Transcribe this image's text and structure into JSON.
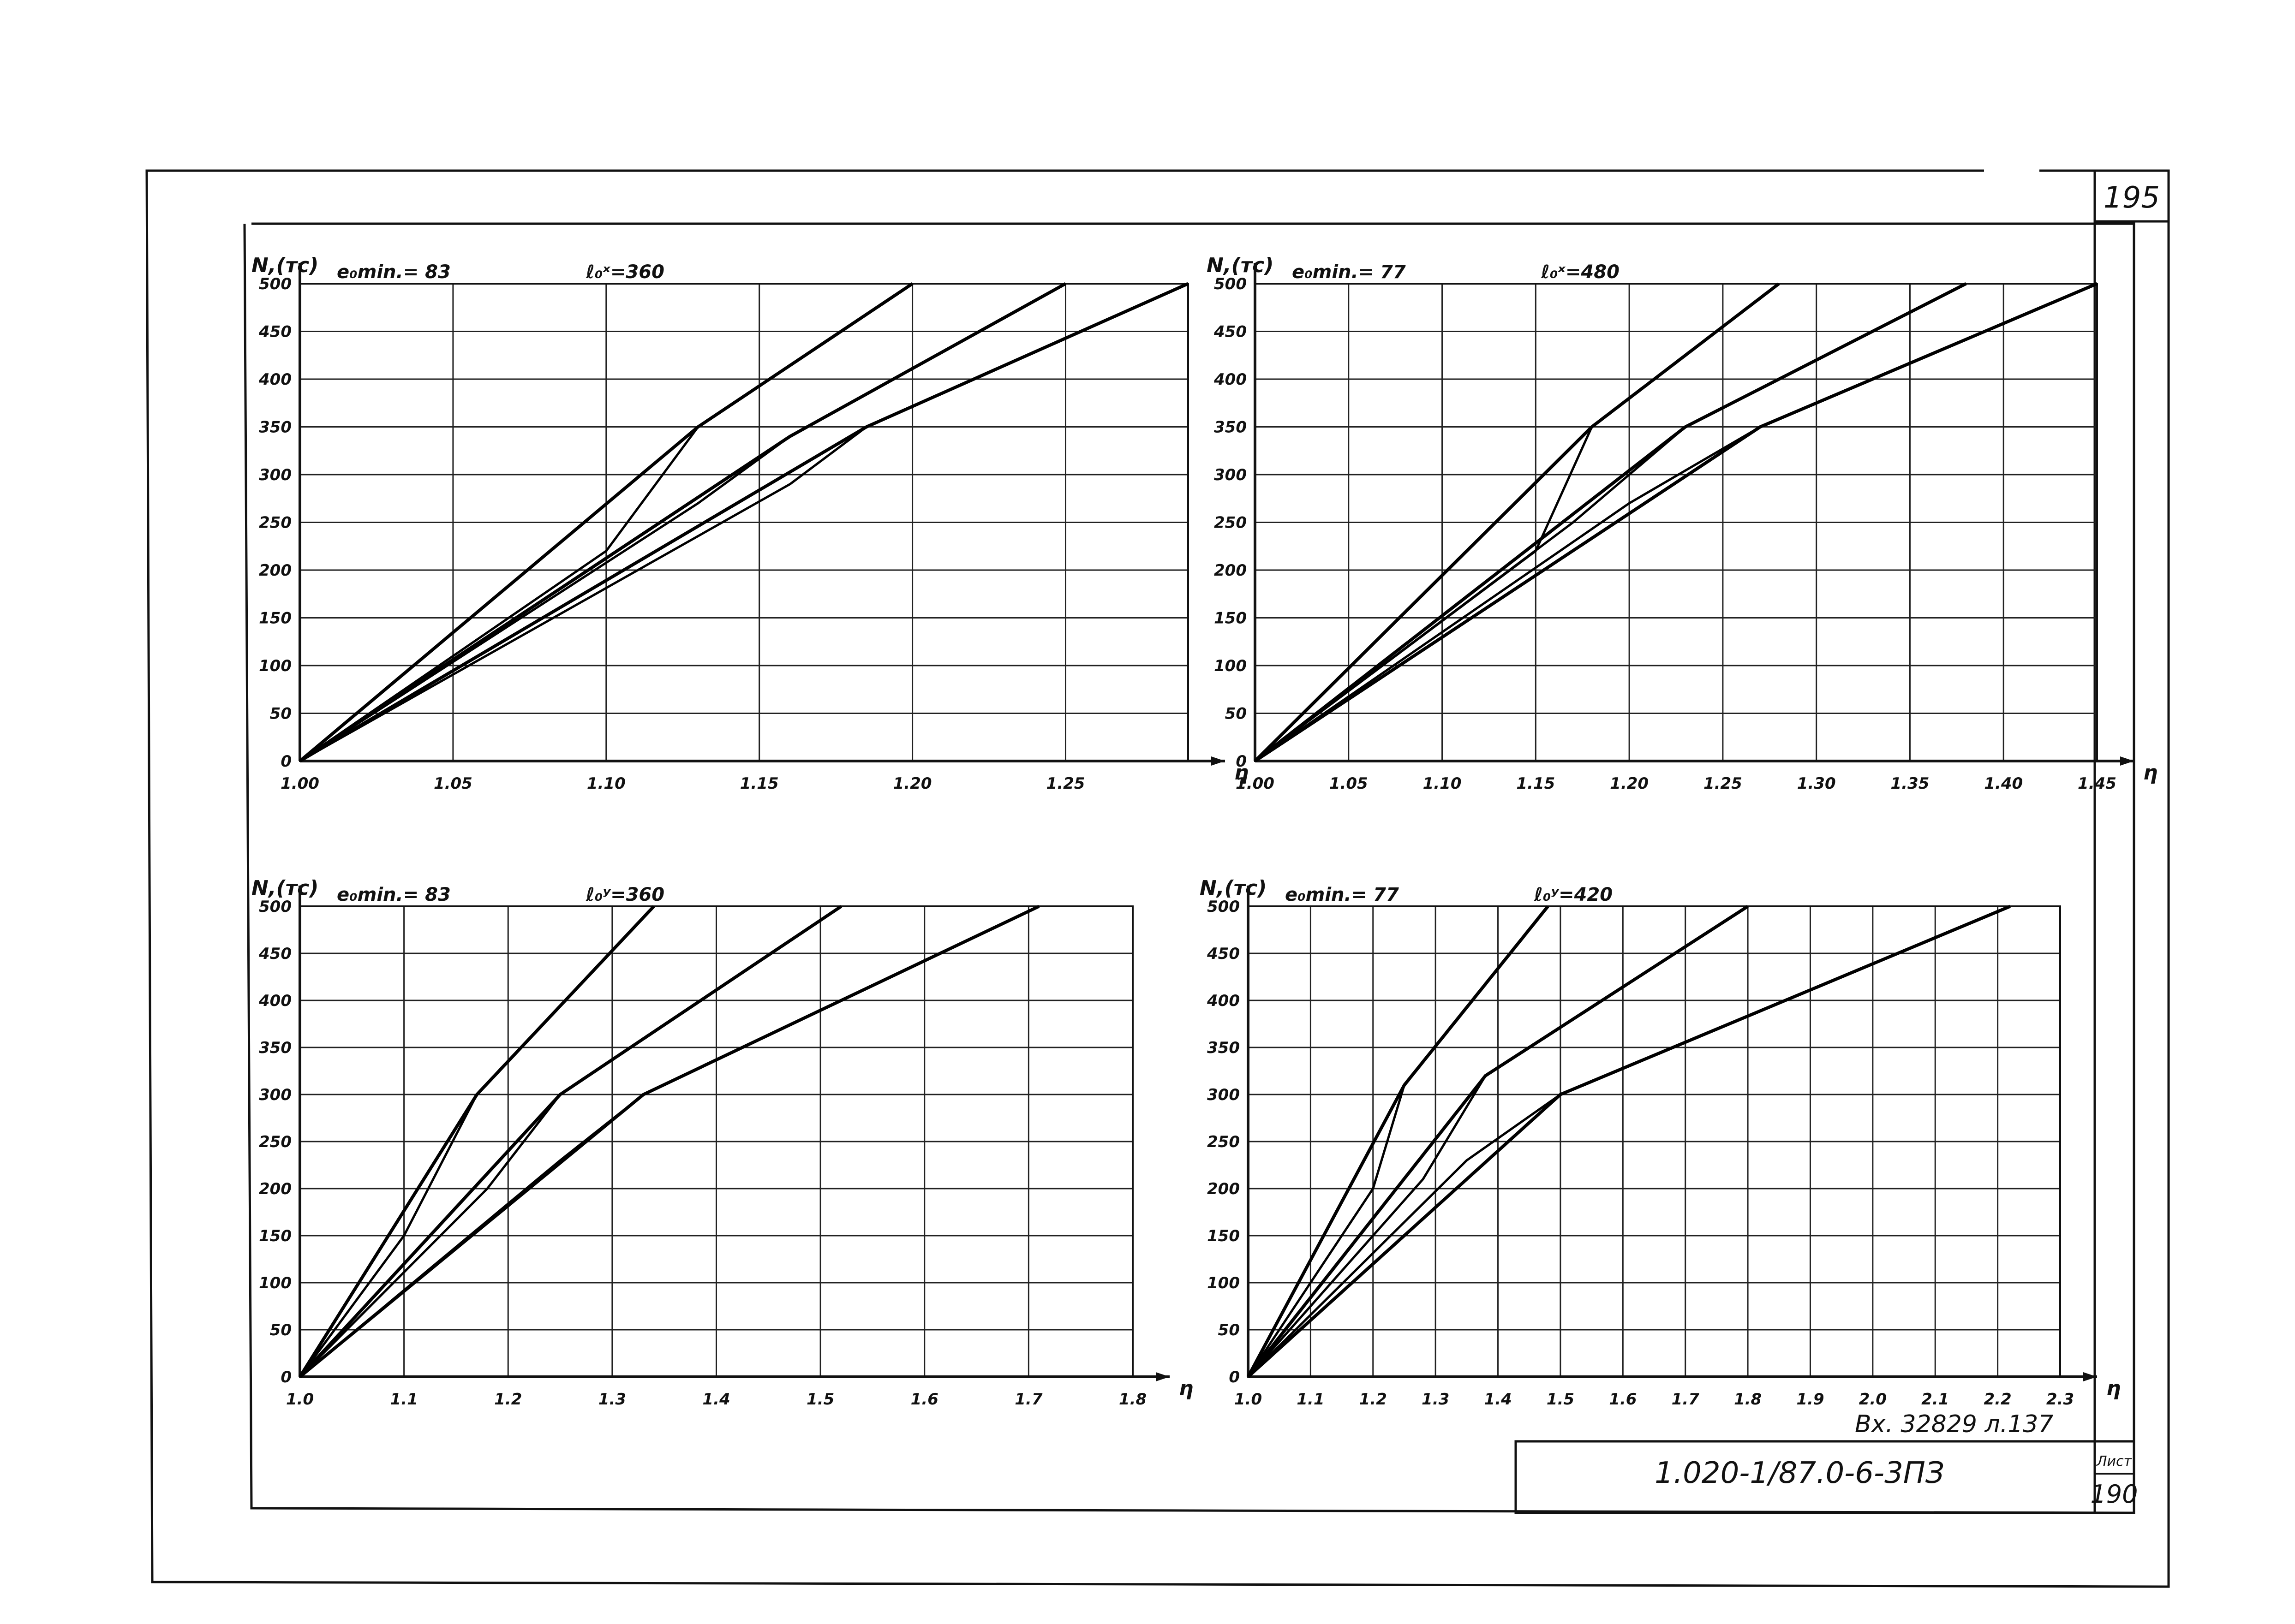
{
  "sheet": {
    "corner_number": "195",
    "doc_code": "1.020-1/87.0-6-3ПЗ",
    "inv_note": "Вх. 32829 л.137",
    "sheet_label": "Лист",
    "sheet_number": "190"
  },
  "chart_data": [
    {
      "type": "line",
      "eomin_label": "e₀min.= 83",
      "l0_label": "ℓ₀ˣ=360",
      "ylabel": "N,(тс)",
      "xlabel": "η",
      "xlim": [
        1.0,
        1.29
      ],
      "ylim": [
        0,
        500
      ],
      "xticks": [
        1.0,
        1.05,
        1.1,
        1.15,
        1.2,
        1.25
      ],
      "xtick_labels": [
        "1.00",
        "1.05",
        "1.10",
        "1.15",
        "1.20",
        "1.25"
      ],
      "yticks": [
        0,
        50,
        100,
        150,
        200,
        250,
        300,
        350,
        400,
        450,
        500
      ],
      "ytick_labels": [
        "0",
        "50",
        "100",
        "150",
        "200",
        "250",
        "300",
        "350",
        "400",
        "450",
        "500"
      ],
      "grid": true,
      "series": [
        {
          "points": [
            [
              1.0,
              0
            ],
            [
              1.13,
              350
            ],
            [
              1.2,
              500
            ]
          ]
        },
        {
          "points": [
            [
              1.0,
              0
            ],
            [
              1.16,
              340
            ],
            [
              1.25,
              500
            ]
          ]
        },
        {
          "points": [
            [
              1.0,
              0
            ],
            [
              1.185,
              350
            ],
            [
              1.29,
              500
            ]
          ]
        },
        {
          "points": [
            [
              1.0,
              0
            ],
            [
              1.1,
              220
            ],
            [
              1.13,
              350
            ]
          ]
        },
        {
          "points": [
            [
              1.0,
              0
            ],
            [
              1.13,
              270
            ],
            [
              1.16,
              340
            ]
          ]
        },
        {
          "points": [
            [
              1.0,
              0
            ],
            [
              1.16,
              290
            ],
            [
              1.185,
              350
            ]
          ]
        }
      ]
    },
    {
      "type": "line",
      "eomin_label": "e₀min.= 77",
      "l0_label": "ℓ₀ˣ=480",
      "ylabel": "N,(тс)",
      "xlabel": "η",
      "xlim": [
        1.0,
        1.45
      ],
      "ylim": [
        0,
        500
      ],
      "xticks": [
        1.0,
        1.05,
        1.1,
        1.15,
        1.2,
        1.25,
        1.3,
        1.35,
        1.4,
        1.45
      ],
      "xtick_labels": [
        "1.00",
        "1.05",
        "1.10",
        "1.15",
        "1.20",
        "1.25",
        "1.30",
        "1.35",
        "1.40",
        "1.45"
      ],
      "yticks": [
        0,
        50,
        100,
        150,
        200,
        250,
        300,
        350,
        400,
        450,
        500
      ],
      "ytick_labels": [
        "0",
        "50",
        "100",
        "150",
        "200",
        "250",
        "300",
        "350",
        "400",
        "450",
        "500"
      ],
      "grid": true,
      "series": [
        {
          "points": [
            [
              1.0,
              0
            ],
            [
              1.18,
              350
            ],
            [
              1.28,
              500
            ]
          ]
        },
        {
          "points": [
            [
              1.0,
              0
            ],
            [
              1.23,
              350
            ],
            [
              1.38,
              500
            ]
          ]
        },
        {
          "points": [
            [
              1.0,
              0
            ],
            [
              1.27,
              350
            ],
            [
              1.45,
              500
            ]
          ]
        },
        {
          "points": [
            [
              1.0,
              0
            ],
            [
              1.15,
              220
            ],
            [
              1.18,
              350
            ]
          ]
        },
        {
          "points": [
            [
              1.0,
              0
            ],
            [
              1.17,
              250
            ],
            [
              1.23,
              350
            ]
          ]
        },
        {
          "points": [
            [
              1.0,
              0
            ],
            [
              1.2,
              270
            ],
            [
              1.27,
              350
            ]
          ]
        }
      ]
    },
    {
      "type": "line",
      "eomin_label": "e₀min.= 83",
      "l0_label": "ℓ₀ʸ=360",
      "ylabel": "N,(тс)",
      "xlabel": "η",
      "xlim": [
        1.0,
        1.8
      ],
      "ylim": [
        0,
        500
      ],
      "xticks": [
        1.0,
        1.1,
        1.2,
        1.3,
        1.4,
        1.5,
        1.6,
        1.7,
        1.8
      ],
      "xtick_labels": [
        "1.0",
        "1.1",
        "1.2",
        "1.3",
        "1.4",
        "1.5",
        "1.6",
        "1.7",
        "1.8"
      ],
      "yticks": [
        0,
        50,
        100,
        150,
        200,
        250,
        300,
        350,
        400,
        450,
        500
      ],
      "ytick_labels": [
        "0",
        "50",
        "100",
        "150",
        "200",
        "250",
        "300",
        "350",
        "400",
        "450",
        "500"
      ],
      "grid": true,
      "series": [
        {
          "points": [
            [
              1.0,
              0
            ],
            [
              1.17,
              300
            ],
            [
              1.34,
              500
            ]
          ]
        },
        {
          "points": [
            [
              1.0,
              0
            ],
            [
              1.25,
              300
            ],
            [
              1.52,
              500
            ]
          ]
        },
        {
          "points": [
            [
              1.0,
              0
            ],
            [
              1.33,
              300
            ],
            [
              1.71,
              500
            ]
          ]
        },
        {
          "points": [
            [
              1.0,
              0
            ],
            [
              1.1,
              150
            ],
            [
              1.17,
              300
            ]
          ]
        },
        {
          "points": [
            [
              1.0,
              0
            ],
            [
              1.18,
              200
            ],
            [
              1.25,
              300
            ]
          ]
        },
        {
          "points": [
            [
              1.0,
              0
            ],
            [
              1.25,
              230
            ],
            [
              1.33,
              300
            ]
          ]
        }
      ]
    },
    {
      "type": "line",
      "eomin_label": "e₀min.= 77",
      "l0_label": "ℓ₀ʸ=420",
      "ylabel": "N,(тс)",
      "xlabel": "η",
      "xlim": [
        1.0,
        2.3
      ],
      "ylim": [
        0,
        500
      ],
      "xticks": [
        1.0,
        1.1,
        1.2,
        1.3,
        1.4,
        1.5,
        1.6,
        1.7,
        1.8,
        1.9,
        2.0,
        2.1,
        2.2,
        2.3
      ],
      "xtick_labels": [
        "1.0",
        "1.1",
        "1.2",
        "1.3",
        "1.4",
        "1.5",
        "1.6",
        "1.7",
        "1.8",
        "1.9",
        "2.0",
        "2.1",
        "2.2",
        "2.3"
      ],
      "yticks": [
        0,
        50,
        100,
        150,
        200,
        250,
        300,
        350,
        400,
        450,
        500
      ],
      "ytick_labels": [
        "0",
        "50",
        "100",
        "150",
        "200",
        "250",
        "300",
        "350",
        "400",
        "450",
        "500"
      ],
      "grid": true,
      "series": [
        {
          "points": [
            [
              1.0,
              0
            ],
            [
              1.25,
              310
            ],
            [
              1.48,
              500
            ]
          ]
        },
        {
          "points": [
            [
              1.0,
              0
            ],
            [
              1.38,
              320
            ],
            [
              1.8,
              500
            ]
          ]
        },
        {
          "points": [
            [
              1.0,
              0
            ],
            [
              1.5,
              300
            ],
            [
              2.22,
              500
            ]
          ]
        },
        {
          "points": [
            [
              1.0,
              0
            ],
            [
              1.2,
              200
            ],
            [
              1.25,
              310
            ]
          ]
        },
        {
          "points": [
            [
              1.0,
              0
            ],
            [
              1.28,
              210
            ],
            [
              1.38,
              320
            ]
          ]
        },
        {
          "points": [
            [
              1.0,
              0
            ],
            [
              1.35,
              230
            ],
            [
              1.5,
              300
            ]
          ]
        }
      ]
    }
  ]
}
